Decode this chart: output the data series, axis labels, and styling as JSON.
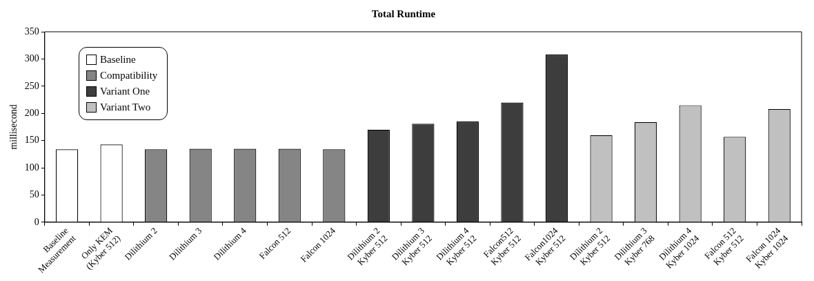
{
  "chart_data": {
    "type": "bar",
    "title": "Total Runtime",
    "ylabel": "millisecond",
    "categories": [
      "Baseline\nMeasurement",
      "Only KEM\n(Kyber 512)",
      "Dilithium 2",
      "Dilithium 3",
      "Dilithium 4",
      "Falcon 512",
      "Falcon 1024",
      "Dilithium 2\nKyber 512",
      "Dilithium 3\nKyber 512",
      "Dilithium 4\nKyber 512",
      "Falcon512\nKyber 512",
      "Falcon1024\nKyber 512",
      "Dilithium 2\nKyber 512",
      "Dilithium 3\nKyber 768",
      "Dilithium 4\nKyber 1024",
      "Falcon 512\nKyber 512",
      "Falcon 1024\nKyber 1024"
    ],
    "series": [
      {
        "name": "Baseline",
        "color": "#ffffff",
        "values": [
          134,
          143,
          null,
          null,
          null,
          null,
          null,
          null,
          null,
          null,
          null,
          null,
          null,
          null,
          null,
          null,
          null
        ]
      },
      {
        "name": "Compatibility",
        "color": "#858585",
        "values": [
          null,
          null,
          134,
          135,
          135,
          135,
          134,
          null,
          null,
          null,
          null,
          null,
          null,
          null,
          null,
          null,
          null
        ]
      },
      {
        "name": "Variant One",
        "color": "#3d3d3d",
        "values": [
          null,
          null,
          null,
          null,
          null,
          null,
          null,
          170,
          181,
          185,
          220,
          308,
          null,
          null,
          null,
          null,
          null
        ]
      },
      {
        "name": "Variant Two",
        "color": "#c0c0c0",
        "values": [
          null,
          null,
          null,
          null,
          null,
          null,
          null,
          null,
          null,
          null,
          null,
          null,
          160,
          184,
          215,
          157,
          208
        ]
      }
    ],
    "ylim": [
      0,
      350
    ],
    "yticks": [
      0,
      50,
      100,
      150,
      200,
      250,
      300,
      350
    ],
    "grid": false,
    "legend": "top left"
  }
}
